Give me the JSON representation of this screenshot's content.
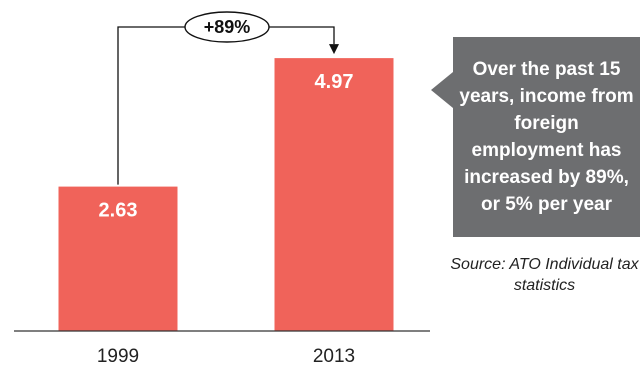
{
  "chart_data": {
    "type": "bar",
    "categories": [
      "1999",
      "2013"
    ],
    "values": [
      2.63,
      4.97
    ],
    "value_labels": [
      "2.63",
      "4.97"
    ],
    "ylim": [
      0,
      5.3
    ],
    "change_label": "+89%",
    "bar_color": "#f0635a",
    "grid": false
  },
  "callout": {
    "text": "Over the past 15 years, income from foreign employment has increased by 89%, or 5% per year",
    "color": "#6d6e70"
  },
  "source": "Source: ATO Individual tax statistics"
}
